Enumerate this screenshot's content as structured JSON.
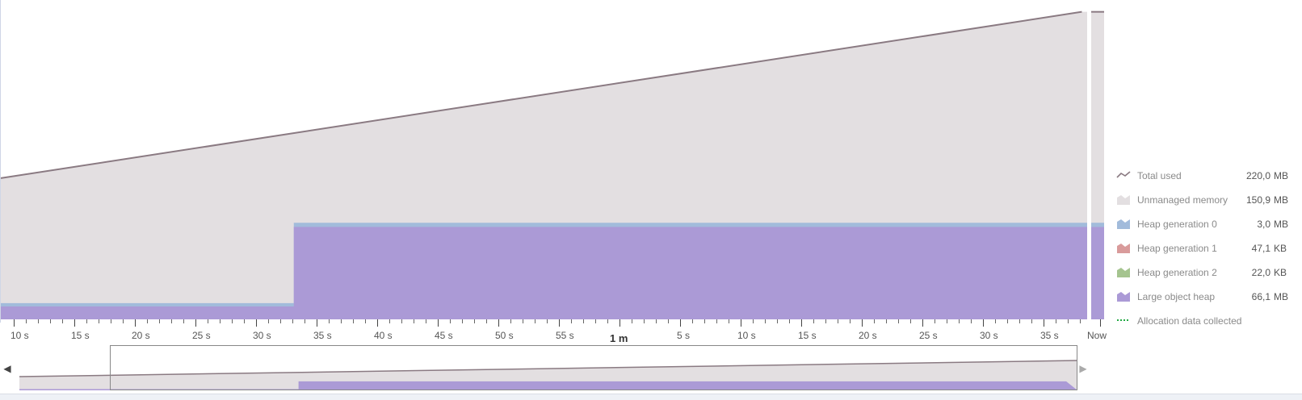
{
  "colors": {
    "total_line": "#8a7a82",
    "unmanaged": "#e3dfe1",
    "gen0": "#a2bbdb",
    "gen1": "#d99b9b",
    "gen2": "#a5c48f",
    "loh": "#ab9ad6",
    "alloc": "#22aa44"
  },
  "chart_data": {
    "type": "area",
    "ylabel": "",
    "xlabel": "",
    "x_ticks": [
      "10 s",
      "15 s",
      "20 s",
      "25 s",
      "30 s",
      "35 s",
      "40 s",
      "45 s",
      "50 s",
      "55 s",
      "1 m",
      "5 s",
      "10 s",
      "15 s",
      "20 s",
      "25 s",
      "30 s",
      "35 s",
      "Now"
    ],
    "x_major_tick": "1 m",
    "time_range_s": [
      6,
      99
    ],
    "total_used_mb": [
      [
        6,
        101
      ],
      [
        97.5,
        220
      ]
    ],
    "large_object_heap_mb": [
      [
        6,
        9.2
      ],
      [
        30.8,
        9.2
      ],
      [
        30.8,
        66.1
      ],
      [
        99,
        66.1
      ]
    ],
    "heap_generation_0_mb": [
      [
        6,
        2.4
      ],
      [
        30.8,
        2.4
      ],
      [
        30.8,
        3.0
      ],
      [
        99,
        3.0
      ]
    ],
    "ylim": [
      0,
      225
    ]
  },
  "legend": [
    {
      "icon": "line-icon",
      "label": "Total used",
      "value": "220,0",
      "unit": "MB"
    },
    {
      "icon": "area-icon",
      "label": "Unmanaged memory",
      "value": "150,9",
      "unit": "MB"
    },
    {
      "icon": "area-icon",
      "label": "Heap generation 0",
      "value": "3,0",
      "unit": "MB"
    },
    {
      "icon": "area-icon",
      "label": "Heap generation 1",
      "value": "47,1",
      "unit": "KB"
    },
    {
      "icon": "area-icon",
      "label": "Heap generation 2",
      "value": "22,0",
      "unit": "KB"
    },
    {
      "icon": "area-icon",
      "label": "Large object heap",
      "value": "66,1",
      "unit": "MB"
    },
    {
      "icon": "dashed-line-icon",
      "label": "Allocation data collected",
      "value": "",
      "unit": ""
    }
  ],
  "navigator": {
    "left_arrow": "◀",
    "right_arrow": "▶"
  }
}
